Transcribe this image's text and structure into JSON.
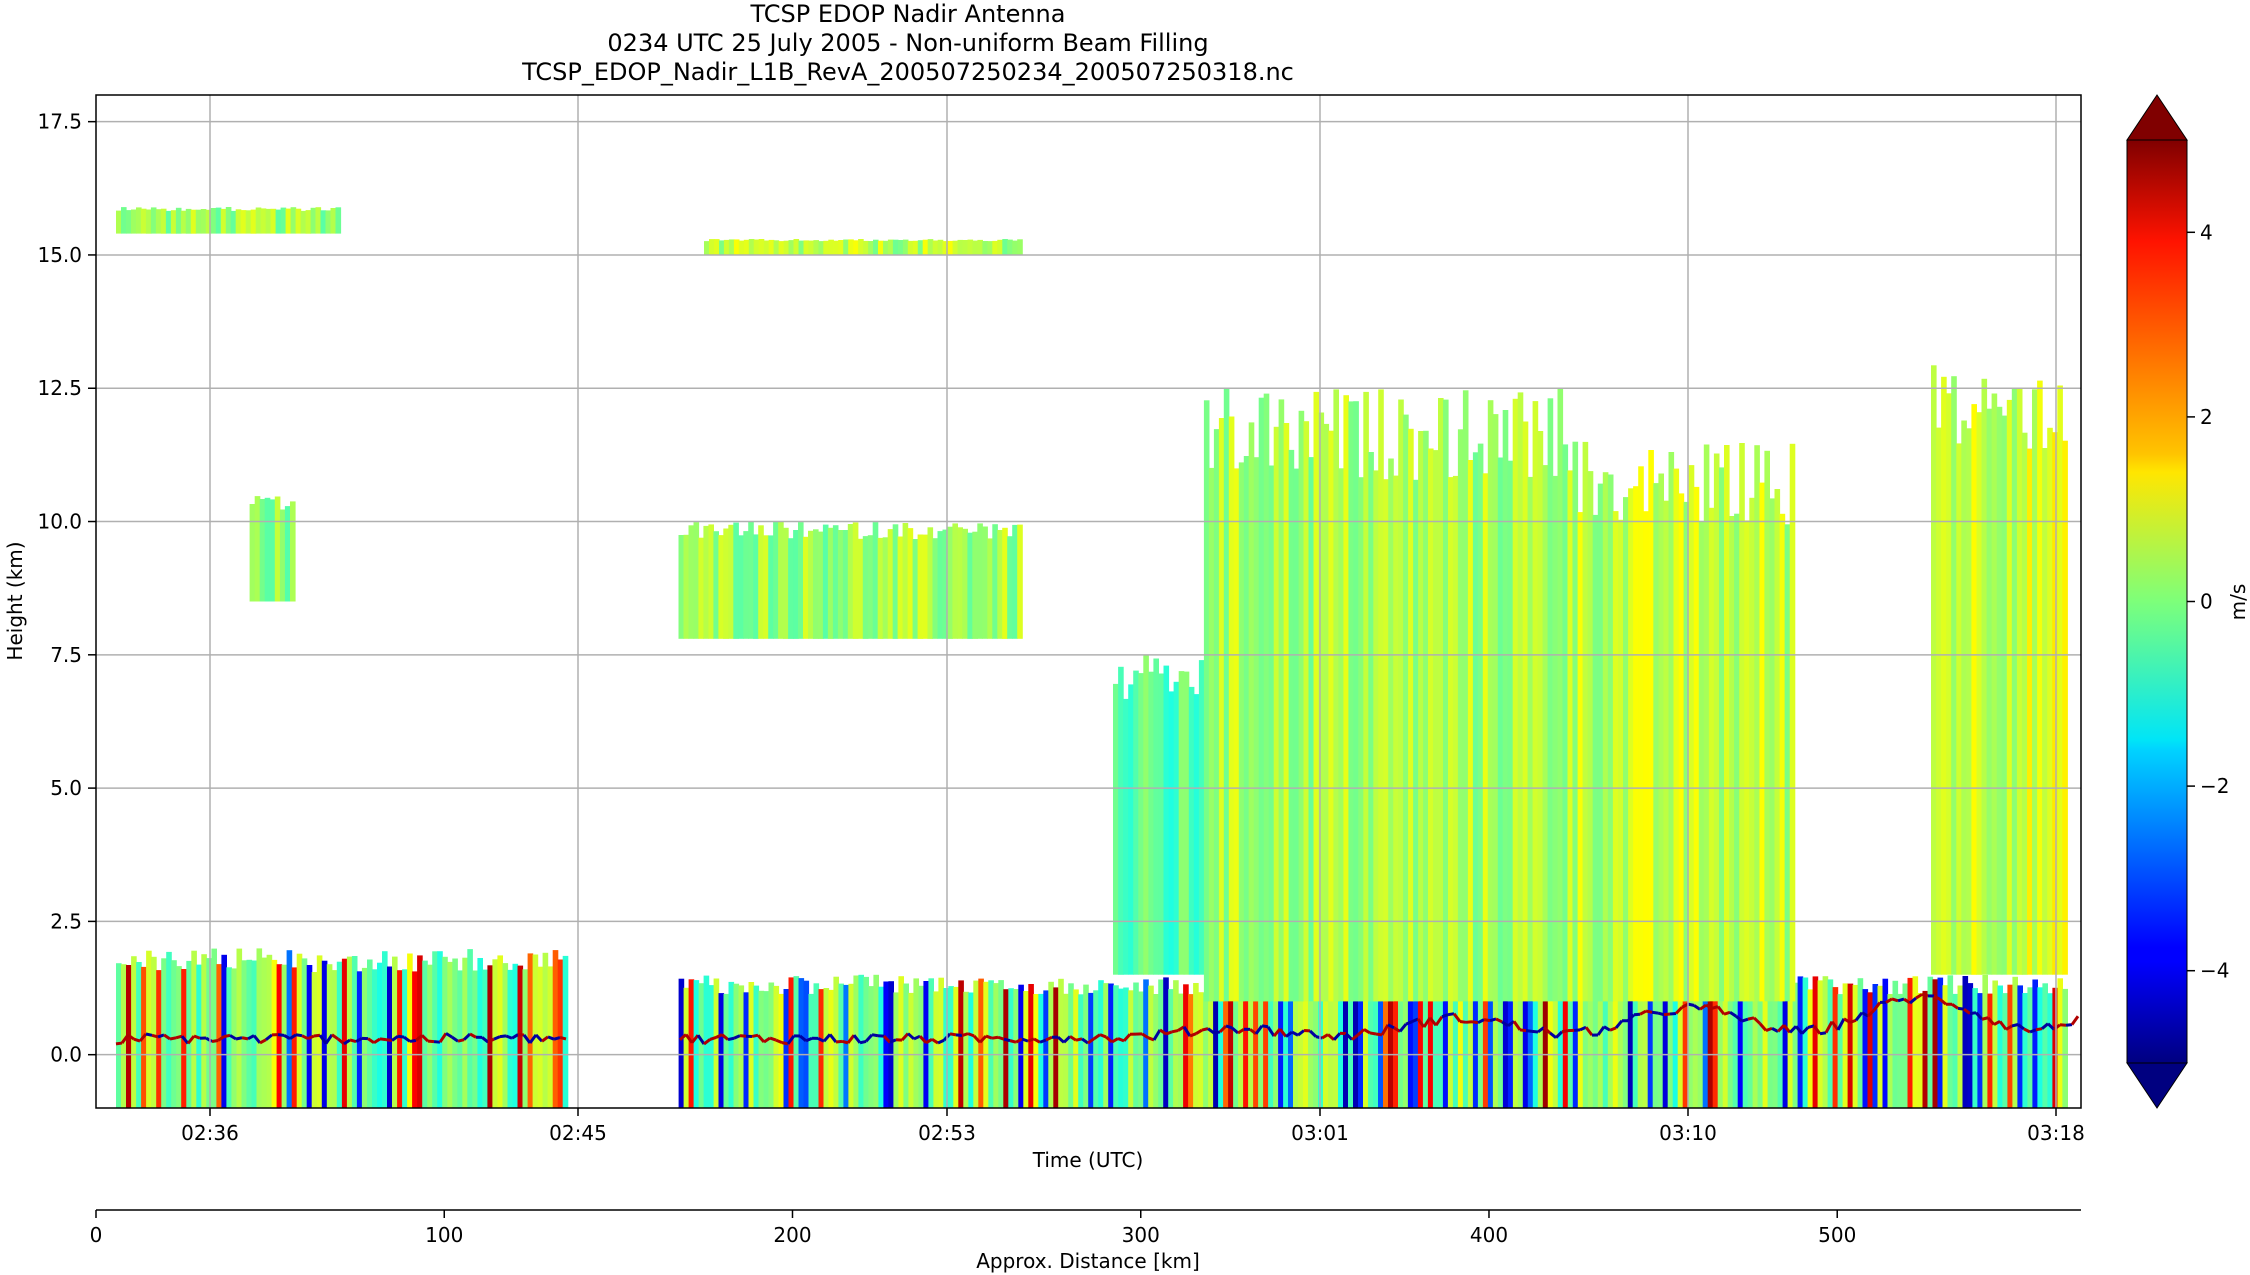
{
  "chart_data": {
    "type": "heatmap",
    "title_lines": [
      "TCSP EDOP Nadir Antenna",
      "0234 UTC 25 July 2005 - Non-uniform Beam Filling",
      "TCSP_EDOP_Nadir_L1B_RevA_200507250234_200507250318.nc"
    ],
    "xlabel": "Time (UTC)",
    "ylabel": "Height (km)",
    "xticks": [
      "02:36",
      "02:45",
      "02:53",
      "03:01",
      "03:10",
      "03:18"
    ],
    "ylim": [
      -1.0,
      18.0
    ],
    "yticks": [
      "0.0",
      "2.5",
      "5.0",
      "7.5",
      "10.0",
      "12.5",
      "15.0",
      "17.5"
    ],
    "yticks_values": [
      0.0,
      2.5,
      5.0,
      7.5,
      10.0,
      12.5,
      15.0,
      17.5
    ],
    "grid": true,
    "secondary_axis": {
      "label": "Approx. Distance [km]",
      "range": [
        0,
        570
      ],
      "ticks": [
        0,
        100,
        200,
        300,
        400,
        500
      ],
      "tick_labels": [
        "0",
        "100",
        "200",
        "300",
        "400",
        "500"
      ]
    },
    "colorbar": {
      "label": "m/s",
      "cmap": "jet",
      "range": [
        -5,
        5
      ],
      "ticks": [
        4,
        2,
        0,
        -2,
        -4
      ],
      "tick_labels": [
        "4",
        "2",
        "0",
        "−2",
        "−4"
      ],
      "extend": "both"
    },
    "data_gap_time": [
      "02:45",
      "02:47"
    ],
    "features": [
      {
        "time": [
          "02:35",
          "02:45"
        ],
        "height": [
          -1.0,
          2.0
        ],
        "velocity": "mixed"
      },
      {
        "time": [
          "02:35",
          "02:40"
        ],
        "height": [
          15.4,
          15.9
        ],
        "velocity": 0.3
      },
      {
        "time": [
          "02:38",
          "02:39"
        ],
        "height": [
          8.5,
          10.5
        ],
        "velocity": 0.2
      },
      {
        "time": [
          "02:47",
          "03:18"
        ],
        "height": [
          -1.0,
          1.5
        ],
        "velocity": "mixed"
      },
      {
        "time": [
          "02:47",
          "02:55"
        ],
        "height": [
          7.8,
          10.0
        ],
        "velocity": 0.3
      },
      {
        "time": [
          "02:48",
          "02:55"
        ],
        "height": [
          15.0,
          15.3
        ],
        "velocity": 0.5
      },
      {
        "time": [
          "02:57",
          "02:59"
        ],
        "height": [
          1.5,
          7.5
        ],
        "velocity": -0.5
      },
      {
        "time": [
          "02:59",
          "03:07"
        ],
        "height": [
          1.0,
          12.5
        ],
        "velocity": 0.4
      },
      {
        "time": [
          "03:07",
          "03:12"
        ],
        "height": [
          1.0,
          11.5
        ],
        "velocity": 0.6
      },
      {
        "time": [
          "03:15",
          "03:18"
        ],
        "height": [
          1.5,
          13.0
        ],
        "velocity": 0.8
      }
    ]
  }
}
